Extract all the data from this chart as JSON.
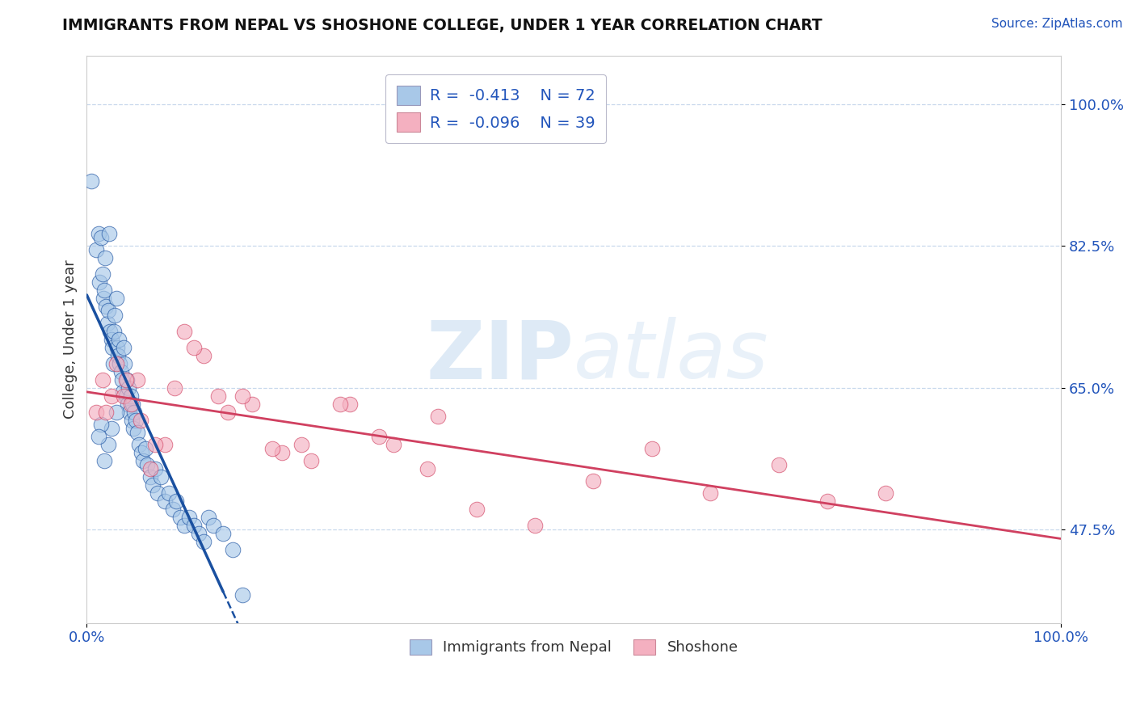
{
  "title": "IMMIGRANTS FROM NEPAL VS SHOSHONE COLLEGE, UNDER 1 YEAR CORRELATION CHART",
  "source": "Source: ZipAtlas.com",
  "ylabel": "College, Under 1 year",
  "xlim": [
    0.0,
    1.0
  ],
  "ylim": [
    0.36,
    1.06
  ],
  "x_tick_labels": [
    "0.0%",
    "100.0%"
  ],
  "y_tick_labels": [
    "47.5%",
    "65.0%",
    "82.5%",
    "100.0%"
  ],
  "y_tick_values": [
    0.475,
    0.65,
    0.825,
    1.0
  ],
  "legend_r1": "-0.413",
  "legend_n1": "72",
  "legend_r2": "-0.096",
  "legend_n2": "39",
  "legend_label1": "Immigrants from Nepal",
  "legend_label2": "Shoshone",
  "color_blue": "#a8c8e8",
  "color_pink": "#f4b0c0",
  "line_color_blue": "#1a50a0",
  "line_color_pink": "#d04060",
  "grid_color": "#c8d8ec",
  "watermark_color": "#c8ddf0",
  "blue_scatter_x": [
    0.005,
    0.01,
    0.012,
    0.013,
    0.015,
    0.016,
    0.017,
    0.018,
    0.019,
    0.02,
    0.021,
    0.022,
    0.023,
    0.024,
    0.025,
    0.026,
    0.027,
    0.028,
    0.029,
    0.03,
    0.031,
    0.032,
    0.033,
    0.034,
    0.035,
    0.036,
    0.037,
    0.038,
    0.039,
    0.04,
    0.041,
    0.042,
    0.043,
    0.044,
    0.045,
    0.046,
    0.047,
    0.048,
    0.049,
    0.05,
    0.052,
    0.054,
    0.056,
    0.058,
    0.06,
    0.062,
    0.065,
    0.068,
    0.07,
    0.073,
    0.076,
    0.08,
    0.084,
    0.088,
    0.092,
    0.096,
    0.1,
    0.105,
    0.11,
    0.115,
    0.12,
    0.125,
    0.13,
    0.14,
    0.15,
    0.03,
    0.025,
    0.022,
    0.018,
    0.015,
    0.012,
    0.16
  ],
  "blue_scatter_y": [
    0.905,
    0.82,
    0.84,
    0.78,
    0.835,
    0.79,
    0.76,
    0.77,
    0.81,
    0.75,
    0.73,
    0.745,
    0.84,
    0.72,
    0.71,
    0.7,
    0.68,
    0.72,
    0.74,
    0.76,
    0.7,
    0.69,
    0.71,
    0.68,
    0.67,
    0.66,
    0.645,
    0.7,
    0.68,
    0.64,
    0.66,
    0.63,
    0.65,
    0.62,
    0.64,
    0.61,
    0.63,
    0.6,
    0.62,
    0.61,
    0.595,
    0.58,
    0.57,
    0.56,
    0.575,
    0.555,
    0.54,
    0.53,
    0.55,
    0.52,
    0.54,
    0.51,
    0.52,
    0.5,
    0.51,
    0.49,
    0.48,
    0.49,
    0.48,
    0.47,
    0.46,
    0.49,
    0.48,
    0.47,
    0.45,
    0.62,
    0.6,
    0.58,
    0.56,
    0.605,
    0.59,
    0.395
  ],
  "pink_scatter_x": [
    0.01,
    0.016,
    0.02,
    0.025,
    0.03,
    0.038,
    0.045,
    0.052,
    0.065,
    0.08,
    0.1,
    0.12,
    0.145,
    0.17,
    0.2,
    0.23,
    0.27,
    0.315,
    0.36,
    0.04,
    0.055,
    0.07,
    0.09,
    0.11,
    0.135,
    0.16,
    0.19,
    0.22,
    0.26,
    0.3,
    0.35,
    0.4,
    0.46,
    0.52,
    0.58,
    0.64,
    0.71,
    0.76,
    0.82
  ],
  "pink_scatter_y": [
    0.62,
    0.66,
    0.62,
    0.64,
    0.68,
    0.64,
    0.63,
    0.66,
    0.55,
    0.58,
    0.72,
    0.69,
    0.62,
    0.63,
    0.57,
    0.56,
    0.63,
    0.58,
    0.615,
    0.66,
    0.61,
    0.58,
    0.65,
    0.7,
    0.64,
    0.64,
    0.575,
    0.58,
    0.63,
    0.59,
    0.55,
    0.5,
    0.48,
    0.535,
    0.575,
    0.52,
    0.555,
    0.51,
    0.52
  ]
}
